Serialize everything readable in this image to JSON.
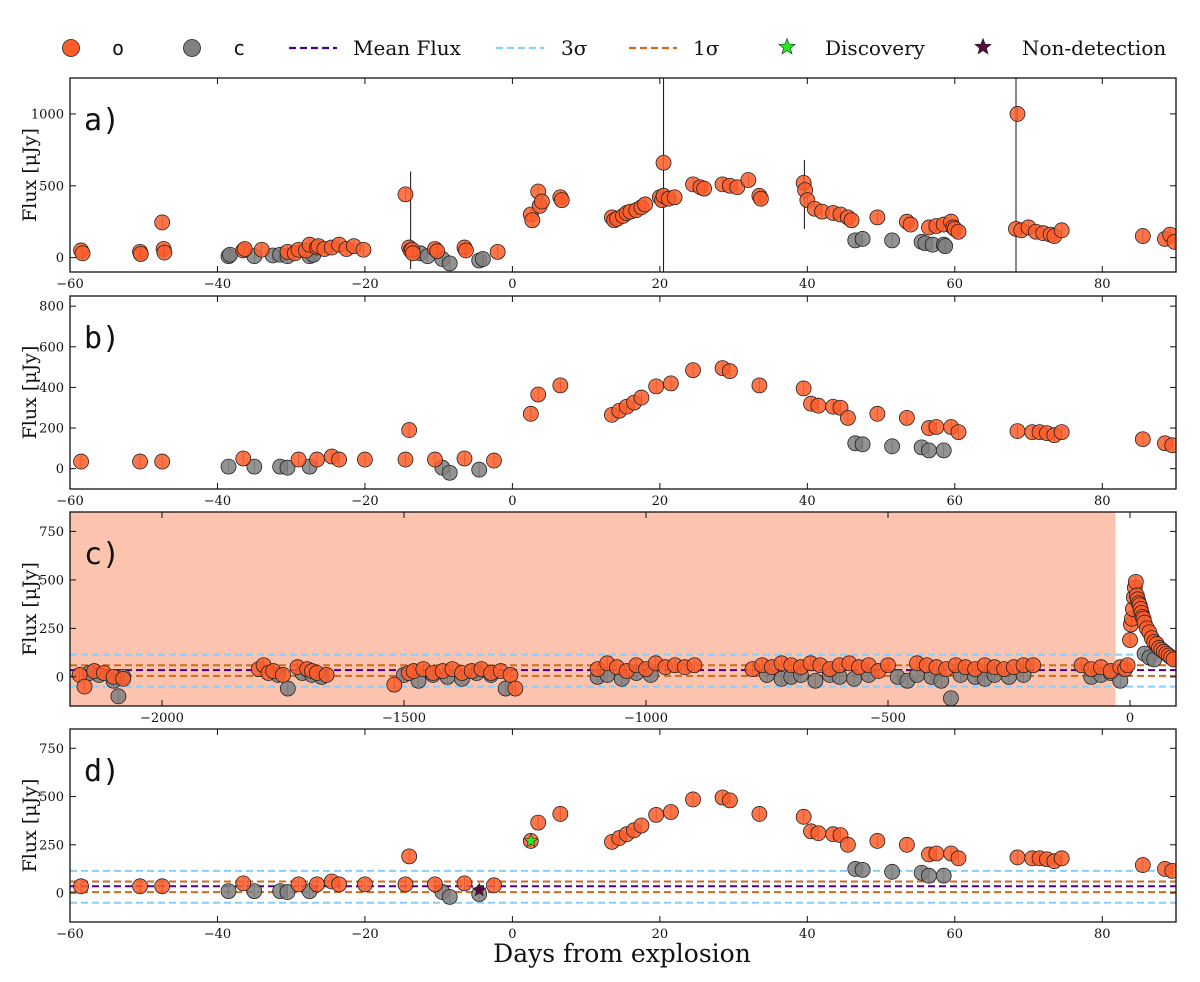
{
  "colors": {
    "o": "#ff5d2a",
    "c": "#808080",
    "mean": "#4b0082",
    "three_sigma": "#87cefa",
    "one_sigma": "#d2691e",
    "discovery": "#22ee22",
    "nondetection": "#5a0a3a",
    "shade": "#fcc3ae"
  },
  "legend": [
    {
      "key": "o",
      "label": "o",
      "icon": "circle-marker"
    },
    {
      "key": "c",
      "label": "c",
      "icon": "circle-marker"
    },
    {
      "key": "mean",
      "label": "Mean Flux",
      "icon": "dashed-line"
    },
    {
      "key": "three_sigma",
      "label": "3σ",
      "icon": "dashed-line"
    },
    {
      "key": "one_sigma",
      "label": "1σ",
      "icon": "dashed-line"
    },
    {
      "key": "discovery",
      "label": "Discovery",
      "icon": "star-marker"
    },
    {
      "key": "nondetection",
      "label": "Non-detection",
      "icon": "star-marker"
    }
  ],
  "chart_data": [
    {
      "panel": "a)",
      "type": "scatter",
      "xlabel": "",
      "ylabel": "Flux [μJy]",
      "xlim": [
        -60,
        90
      ],
      "ylim": [
        -100,
        1250
      ],
      "xticks": [
        -60,
        -40,
        -20,
        0,
        20,
        40,
        60,
        80
      ],
      "yticks": [
        0,
        500,
        1000
      ],
      "series": [
        {
          "name": "o",
          "x": [
            -58.5,
            -58.3,
            -50.5,
            -50.4,
            -47.5,
            -47.3,
            -47.2,
            -36.5,
            -36.3,
            -34.0,
            -30.5,
            -29.5,
            -29.0,
            -28.0,
            -27.5,
            -26.5,
            -26.3,
            -25.5,
            -24.5,
            -23.5,
            -22.5,
            -21.5,
            -20.2,
            -14.5,
            -14.0,
            -13.8,
            -13.6,
            -13.5,
            -10.5,
            -10.2,
            -6.5,
            -6.3,
            -2.0,
            2.5,
            2.7,
            3.5,
            3.7,
            4.0,
            6.5,
            6.7,
            13.5,
            13.8,
            14.2,
            15.0,
            15.5,
            16.0,
            16.8,
            17.5,
            18.0,
            20.0,
            20.3,
            20.5,
            21.2,
            22.0,
            24.5,
            25.5,
            26.0,
            28.5,
            29.5,
            30.5,
            32.0,
            33.5,
            33.7,
            39.5,
            39.7,
            40.0,
            41.0,
            42.0,
            43.5,
            44.5,
            45.5,
            46.0,
            49.5,
            53.5,
            54.0,
            56.5,
            57.5,
            58.5,
            59.5,
            59.8,
            60.0,
            60.5,
            68.3,
            69.0,
            70.0,
            71.0,
            72.0,
            73.0,
            73.5,
            74.5,
            85.5,
            88.5,
            89.2,
            89.8,
            68.5,
            20.5
          ],
          "y": [
            50,
            30,
            40,
            25,
            245,
            60,
            35,
            50,
            60,
            55,
            40,
            30,
            55,
            50,
            90,
            70,
            80,
            60,
            70,
            90,
            60,
            80,
            55,
            440,
            70,
            50,
            55,
            30,
            60,
            45,
            70,
            50,
            40,
            300,
            260,
            460,
            360,
            390,
            420,
            400,
            280,
            260,
            270,
            290,
            310,
            320,
            330,
            350,
            370,
            420,
            400,
            430,
            410,
            420,
            510,
            490,
            480,
            510,
            500,
            490,
            540,
            430,
            410,
            520,
            470,
            400,
            340,
            320,
            310,
            300,
            280,
            260,
            280,
            250,
            230,
            210,
            220,
            230,
            250,
            210,
            200,
            180,
            200,
            190,
            210,
            180,
            170,
            160,
            150,
            190,
            150,
            130,
            160,
            110,
            1000,
            660
          ]
        },
        {
          "name": "c",
          "x": [
            -38.5,
            -38.3,
            -35.0,
            -32.5,
            -31.5,
            -30.5,
            -27.5,
            -27.0,
            -12.5,
            -11.5,
            -9.5,
            -8.5,
            -4.5,
            -4.0,
            46.5,
            47.5,
            51.5,
            55.5,
            56.0,
            57.0,
            58.5,
            58.7
          ],
          "y": [
            10,
            20,
            10,
            15,
            20,
            10,
            10,
            20,
            30,
            10,
            -10,
            -40,
            -20,
            -10,
            120,
            130,
            120,
            110,
            100,
            90,
            90,
            80
          ]
        }
      ]
    },
    {
      "panel": "b)",
      "type": "scatter",
      "xlabel": "",
      "ylabel": "Flux [μJy]",
      "xlim": [
        -60,
        90
      ],
      "ylim": [
        -100,
        850
      ],
      "xticks": [
        -60,
        -40,
        -20,
        0,
        20,
        40,
        60,
        80
      ],
      "yticks": [
        0,
        200,
        400,
        600,
        800
      ],
      "series": [
        {
          "name": "o",
          "x": [
            -58.5,
            -50.5,
            -47.5,
            -36.5,
            -29.0,
            -26.5,
            -24.5,
            -23.5,
            -20.0,
            -14.5,
            -14.0,
            -10.5,
            -6.5,
            -2.5,
            2.5,
            3.5,
            6.5,
            13.5,
            14.5,
            15.5,
            16.5,
            17.5,
            19.5,
            21.5,
            24.5,
            28.5,
            29.5,
            33.5,
            39.5,
            40.5,
            41.5,
            43.5,
            44.5,
            45.5,
            49.5,
            53.5,
            56.5,
            57.5,
            59.5,
            60.5,
            68.5,
            70.5,
            71.5,
            72.5,
            73.5,
            74.5,
            85.5,
            88.5,
            89.5
          ],
          "y": [
            35,
            35,
            35,
            50,
            45,
            45,
            60,
            45,
            45,
            45,
            190,
            45,
            50,
            40,
            270,
            365,
            410,
            265,
            285,
            305,
            325,
            350,
            405,
            420,
            485,
            495,
            480,
            410,
            395,
            320,
            310,
            305,
            300,
            250,
            270,
            250,
            200,
            205,
            205,
            180,
            185,
            180,
            180,
            175,
            165,
            180,
            145,
            125,
            115
          ]
        },
        {
          "name": "c",
          "x": [
            -38.5,
            -35.0,
            -31.5,
            -30.5,
            -27.5,
            -9.5,
            -8.5,
            -4.5,
            46.5,
            47.5,
            51.5,
            55.5,
            56.5,
            58.5
          ],
          "y": [
            10,
            10,
            10,
            5,
            10,
            5,
            -20,
            -5,
            125,
            120,
            110,
            105,
            90,
            90
          ]
        }
      ]
    },
    {
      "panel": "c)",
      "type": "scatter",
      "xlabel": "",
      "ylabel": "Flux [μJy]",
      "xlim": [
        -2190,
        95
      ],
      "ylim": [
        -150,
        850
      ],
      "xticks": [
        -2000,
        -1500,
        -1000,
        -500,
        0
      ],
      "yticks": [
        0,
        250,
        500,
        750
      ],
      "shaded_range": [
        -2190,
        -30
      ],
      "mean_flux": 35,
      "three_sigma": [
        -50,
        115
      ],
      "one_sigma": [
        5,
        60
      ],
      "series": [
        {
          "name": "o",
          "x": [
            -2170,
            -2160,
            -2140,
            -2120,
            -2100,
            -2080,
            -1800,
            -1790,
            -1780,
            -1770,
            -1750,
            -1720,
            -1700,
            -1690,
            -1680,
            -1660,
            -1520,
            -1490,
            -1480,
            -1460,
            -1440,
            -1420,
            -1400,
            -1380,
            -1360,
            -1340,
            -1320,
            -1300,
            -1280,
            -1270,
            -1100,
            -1080,
            -1060,
            -1040,
            -1020,
            -1000,
            -980,
            -960,
            -940,
            -920,
            -900,
            -780,
            -760,
            -740,
            -720,
            -700,
            -680,
            -660,
            -640,
            -620,
            -600,
            -580,
            -560,
            -540,
            -520,
            -500,
            -440,
            -420,
            -400,
            -380,
            -360,
            -340,
            -320,
            -300,
            -280,
            -260,
            -240,
            -220,
            -200,
            -100,
            -80,
            -60,
            -40,
            -20,
            -10,
            -5,
            0,
            2,
            4,
            6,
            8,
            10,
            12,
            14,
            16,
            18,
            20,
            22,
            24,
            26,
            28,
            30,
            35,
            40,
            45,
            50,
            55,
            60,
            65,
            70,
            75,
            80,
            85,
            90
          ],
          "y": [
            10,
            -50,
            30,
            20,
            0,
            -10,
            40,
            60,
            20,
            30,
            10,
            50,
            40,
            30,
            20,
            10,
            -40,
            20,
            30,
            40,
            20,
            30,
            40,
            20,
            30,
            40,
            20,
            30,
            10,
            -60,
            40,
            70,
            50,
            30,
            60,
            40,
            70,
            50,
            60,
            50,
            60,
            40,
            60,
            50,
            70,
            60,
            50,
            70,
            60,
            40,
            60,
            70,
            50,
            60,
            30,
            60,
            70,
            60,
            50,
            40,
            60,
            50,
            40,
            60,
            50,
            40,
            50,
            60,
            60,
            60,
            40,
            50,
            30,
            50,
            40,
            60,
            190,
            270,
            300,
            350,
            410,
            460,
            490,
            420,
            400,
            380,
            370,
            350,
            330,
            310,
            300,
            280,
            250,
            230,
            200,
            180,
            170,
            150,
            140,
            130,
            120,
            110,
            100,
            90
          ]
        },
        {
          "name": "c",
          "x": [
            -2150,
            -2130,
            -2100,
            -2090,
            -2080,
            -1760,
            -1740,
            -1710,
            -1690,
            -1670,
            -1500,
            -1470,
            -1440,
            -1410,
            -1380,
            -1350,
            -1320,
            -1290,
            -1100,
            -1080,
            -1050,
            -1020,
            -990,
            -750,
            -720,
            -700,
            -680,
            -650,
            -620,
            -600,
            -570,
            -540,
            -480,
            -460,
            -440,
            -410,
            -390,
            -370,
            -350,
            -320,
            -300,
            -280,
            -250,
            -220,
            -80,
            -60,
            -40,
            -20,
            30,
            40,
            50
          ],
          "y": [
            20,
            10,
            -20,
            -100,
            0,
            10,
            -60,
            20,
            10,
            0,
            10,
            -20,
            10,
            0,
            -10,
            20,
            10,
            -60,
            0,
            10,
            -10,
            20,
            10,
            10,
            -10,
            0,
            10,
            -20,
            10,
            0,
            -10,
            10,
            0,
            -20,
            10,
            0,
            -20,
            -110,
            10,
            0,
            -10,
            10,
            0,
            10,
            0,
            10,
            20,
            -20,
            120,
            100,
            90
          ]
        }
      ]
    },
    {
      "panel": "d)",
      "type": "scatter",
      "xlabel": "Days from explosion",
      "ylabel": "Flux [μJy]",
      "xlim": [
        -60,
        90
      ],
      "ylim": [
        -150,
        850
      ],
      "xticks": [
        -60,
        -40,
        -20,
        0,
        20,
        40,
        60,
        80
      ],
      "yticks": [
        0,
        250,
        500,
        750
      ],
      "mean_flux": 35,
      "three_sigma": [
        -50,
        115
      ],
      "one_sigma": [
        5,
        60
      ],
      "discovery": {
        "x": 2.5,
        "y": 270
      },
      "nondetection": {
        "x": -4.5,
        "y": 15
      },
      "series": [
        {
          "name": "o",
          "x": [
            -58.5,
            -50.5,
            -47.5,
            -36.5,
            -29.0,
            -26.5,
            -24.5,
            -23.5,
            -20.0,
            -14.5,
            -14.0,
            -10.5,
            -6.5,
            -2.5,
            2.5,
            3.5,
            6.5,
            13.5,
            14.5,
            15.5,
            16.5,
            17.5,
            19.5,
            21.5,
            24.5,
            28.5,
            29.5,
            33.5,
            39.5,
            40.5,
            41.5,
            43.5,
            44.5,
            45.5,
            49.5,
            53.5,
            56.5,
            57.5,
            59.5,
            60.5,
            68.5,
            70.5,
            71.5,
            72.5,
            73.5,
            74.5,
            85.5,
            88.5,
            89.5
          ],
          "y": [
            35,
            35,
            35,
            50,
            45,
            45,
            60,
            45,
            45,
            45,
            190,
            45,
            50,
            40,
            270,
            365,
            410,
            265,
            285,
            305,
            325,
            350,
            405,
            420,
            485,
            495,
            480,
            410,
            395,
            320,
            310,
            305,
            300,
            250,
            270,
            250,
            200,
            205,
            205,
            180,
            185,
            180,
            180,
            175,
            165,
            180,
            145,
            125,
            115
          ]
        },
        {
          "name": "c",
          "x": [
            -38.5,
            -35.0,
            -31.5,
            -30.5,
            -27.5,
            -9.5,
            -8.5,
            -4.5,
            46.5,
            47.5,
            51.5,
            55.5,
            56.5,
            58.5
          ],
          "y": [
            10,
            10,
            10,
            5,
            10,
            5,
            -20,
            -5,
            125,
            120,
            110,
            105,
            90,
            90
          ]
        }
      ]
    }
  ]
}
